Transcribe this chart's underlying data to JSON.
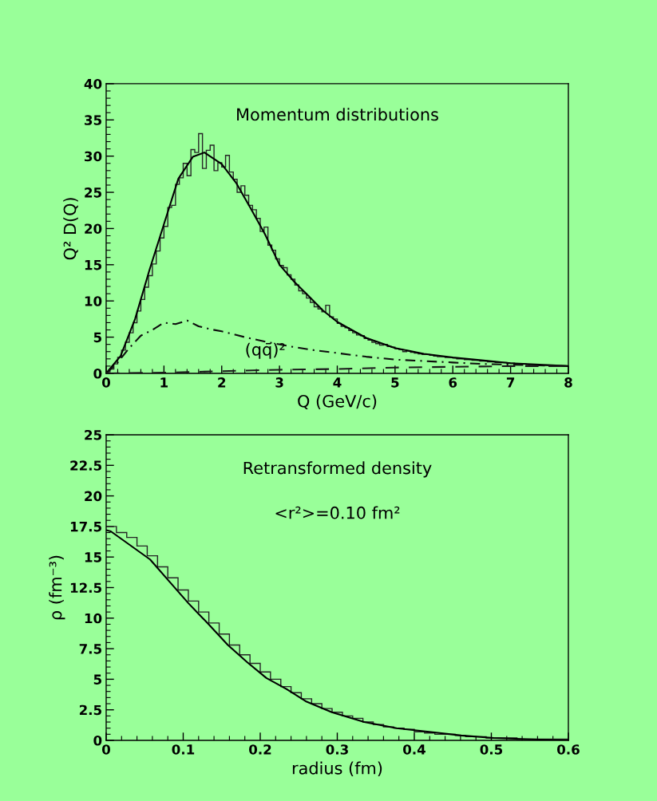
{
  "chart_data": [
    {
      "type": "line",
      "title": "Momentum distributions",
      "xlabel": "Q (GeV/c)",
      "ylabel": "Q² D(Q)",
      "xlim": [
        0,
        8
      ],
      "xticks": [
        0,
        1,
        2,
        3,
        4,
        5,
        6,
        7,
        8
      ],
      "ylim": [
        0,
        40
      ],
      "yticks": [
        0,
        5,
        10,
        15,
        20,
        25,
        30,
        35,
        40
      ],
      "grid": false,
      "legend": false,
      "annotations": [
        "(qq̄)²"
      ],
      "series": [
        {
          "type": "histogram",
          "color": "#262626",
          "bins": [
            0,
            0.0667,
            0.1333,
            0.2,
            0.2667,
            0.3333,
            0.4,
            0.4667,
            0.5333,
            0.6,
            0.6667,
            0.7333,
            0.8,
            0.8667,
            0.9333,
            1,
            1.0667,
            1.1333,
            1.2,
            1.2667,
            1.3333,
            1.4,
            1.4667,
            1.5333,
            1.6,
            1.6667,
            1.7333,
            1.8,
            1.8667,
            1.9333,
            2,
            2.0667,
            2.1333,
            2.2,
            2.2667,
            2.3333,
            2.4,
            2.4667,
            2.5333,
            2.6,
            2.6667,
            2.7333,
            2.8,
            2.8667,
            2.9333,
            3,
            3.0667,
            3.1333,
            3.2,
            3.2667,
            3.3333,
            3.4,
            3.4667,
            3.5333,
            3.6,
            3.6667,
            3.7333,
            3.8,
            3.8667,
            3.9333,
            4,
            4.0667,
            4.1333,
            4.2,
            4.2667,
            4.3333,
            4.4,
            4.4667,
            4.5333,
            4.6,
            4.6667,
            4.7333,
            4.8,
            4.8667,
            4.9333,
            5,
            5.0667,
            5.1333,
            5.2,
            5.2667,
            5.3333,
            5.4,
            5.4667,
            5.5333,
            5.6,
            5.6667,
            5.7333,
            5.8,
            5.8667,
            5.9333,
            6,
            6.0667,
            6.1333,
            6.2,
            6.2667,
            6.3333,
            6.4,
            6.4667,
            6.5333,
            6.6,
            6.6667,
            6.7333,
            6.8,
            6.8667,
            6.9333,
            7,
            7.0667,
            7.1333,
            7.2,
            7.2667,
            7.3333,
            7.4,
            7.4667,
            7.5333,
            7.6,
            7.6667,
            7.7333,
            7.8,
            7.8667,
            7.9333,
            8
          ],
          "values": [
            0.2,
            0.6,
            1.3,
            2.2,
            3.2,
            4.3,
            5.6,
            7.0,
            8.6,
            10.2,
            11.9,
            13.5,
            15.1,
            16.9,
            18.7,
            20.3,
            22.9,
            23.2,
            26.1,
            27.0,
            29.0,
            27.3,
            30.9,
            30.5,
            33.1,
            28.3,
            30.8,
            31.5,
            28.0,
            29.1,
            28.5,
            30.1,
            27.8,
            26.8,
            25.0,
            25.9,
            24.6,
            23.2,
            22.6,
            21.4,
            19.6,
            20.2,
            17.7,
            17.0,
            15.8,
            14.9,
            14.6,
            13.6,
            13.0,
            12.2,
            11.4,
            11.0,
            10.4,
            9.8,
            9.2,
            8.9,
            8.5,
            9.4,
            7.8,
            7.5,
            6.9,
            6.5,
            6.3,
            5.9,
            5.6,
            5.3,
            5.2,
            4.8,
            4.6,
            4.3,
            4.1,
            3.9,
            4.0,
            3.7,
            3.6,
            3.4,
            3.3,
            3.0,
            3.1,
            2.9,
            2.8,
            2.7,
            2.6,
            2.6,
            2.5,
            2.4,
            2.3,
            2.3,
            2.2,
            2.2,
            2.1,
            2.0,
            2.0,
            1.9,
            1.9,
            1.8,
            1.8,
            1.7,
            1.7,
            1.6,
            1.6,
            1.5,
            1.5,
            1.5,
            1.4,
            1.4,
            1.3,
            1.3,
            1.3,
            1.2,
            1.2,
            1.2,
            1.1,
            1.1,
            1.1,
            1.1,
            1.0,
            1.0,
            1.0,
            1.0
          ]
        },
        {
          "color": "#000000",
          "line_style": "solid",
          "x": [
            0,
            0.25,
            0.5,
            0.75,
            1.0,
            1.25,
            1.5,
            1.7,
            2.0,
            2.25,
            2.5,
            2.75,
            3.0,
            3.25,
            3.5,
            3.75,
            4.0,
            4.5,
            5.0,
            5.5,
            6.0,
            6.5,
            7.0,
            7.5,
            8.0
          ],
          "values": [
            0,
            2.4,
            7.5,
            14.3,
            20.6,
            26.9,
            29.9,
            30.5,
            28.9,
            26.3,
            22.8,
            19.2,
            15.0,
            12.7,
            10.7,
            8.7,
            7.1,
            4.9,
            3.5,
            2.7,
            2.2,
            1.8,
            1.4,
            1.2,
            1.0
          ]
        },
        {
          "color": "#0d0d0d",
          "line_style": "dashdot",
          "x": [
            0,
            0.2,
            0.4,
            0.6,
            0.8,
            1.0,
            1.2,
            1.4,
            1.6,
            1.8,
            2.0,
            2.4,
            2.8,
            3.2,
            3.6,
            4.0,
            4.5,
            5.0,
            5.5,
            6.0,
            6.5,
            7.0,
            7.5,
            8.0
          ],
          "values": [
            0,
            1.5,
            3.5,
            5.2,
            6.0,
            7.0,
            6.8,
            7.3,
            6.5,
            6.1,
            5.8,
            5.0,
            4.3,
            3.7,
            3.2,
            2.8,
            2.3,
            1.9,
            1.7,
            1.5,
            1.3,
            1.2,
            1.1,
            1.0
          ]
        },
        {
          "color": "#1a1a1a",
          "line_style": "dashed",
          "x": [
            0,
            1,
            2,
            3,
            4,
            5,
            6,
            7,
            8
          ],
          "values": [
            0,
            0.1,
            0.3,
            0.5,
            0.6,
            0.8,
            0.9,
            1.0,
            1.0
          ]
        }
      ]
    },
    {
      "type": "line",
      "title": "Retransformed density",
      "xlabel": "radius (fm)",
      "ylabel": "ρ (fm⁻³)",
      "xlim": [
        0,
        0.6
      ],
      "xticks": [
        0,
        0.1,
        0.2,
        0.3,
        0.4,
        0.5,
        0.6
      ],
      "ylim": [
        0,
        25
      ],
      "yticks": [
        0,
        2.5,
        5,
        7.5,
        10,
        12.5,
        15,
        17.5,
        20,
        22.5,
        25
      ],
      "grid": false,
      "legend": false,
      "annotations": [
        "<r²>=0.10 fm²"
      ],
      "series": [
        {
          "type": "histogram",
          "color": "#262626",
          "bins": [
            0,
            0.0133,
            0.0267,
            0.04,
            0.0533,
            0.0667,
            0.08,
            0.0933,
            0.1067,
            0.12,
            0.1333,
            0.1467,
            0.16,
            0.1733,
            0.1867,
            0.2,
            0.2133,
            0.2267,
            0.24,
            0.2533,
            0.2667,
            0.28,
            0.2933,
            0.3067,
            0.32,
            0.3333,
            0.3467,
            0.36,
            0.3733,
            0.3867,
            0.4,
            0.4133,
            0.4267,
            0.44,
            0.4533,
            0.4667,
            0.48,
            0.4933,
            0.5067,
            0.52,
            0.5333,
            0.5467,
            0.56,
            0.5733,
            0.5867,
            0.6
          ],
          "values": [
            17.5,
            17.0,
            16.6,
            15.9,
            15.1,
            14.2,
            13.3,
            12.3,
            11.4,
            10.5,
            9.6,
            8.7,
            7.8,
            7.0,
            6.3,
            5.6,
            5.0,
            4.4,
            3.9,
            3.4,
            3.0,
            2.6,
            2.3,
            2.0,
            1.8,
            1.5,
            1.3,
            1.1,
            1.0,
            0.9,
            0.7,
            0.6,
            0.5,
            0.5,
            0.4,
            0.3,
            0.3,
            0.2,
            0.2,
            0.2,
            0.1,
            0.1,
            0.1,
            0.1,
            0.1
          ]
        },
        {
          "color": "#000000",
          "line_style": "solid",
          "x": [
            0,
            0.006,
            0.057,
            0.082,
            0.107,
            0.133,
            0.158,
            0.183,
            0.208,
            0.234,
            0.259,
            0.293,
            0.335,
            0.377,
            0.419,
            0.461,
            0.503,
            0.545,
            0.6
          ],
          "values": [
            17.2,
            17.1,
            14.8,
            13.0,
            11.2,
            9.5,
            7.8,
            6.4,
            5.1,
            4.2,
            3.2,
            2.3,
            1.5,
            1.0,
            0.7,
            0.4,
            0.2,
            0.1,
            0.0
          ]
        }
      ]
    }
  ]
}
